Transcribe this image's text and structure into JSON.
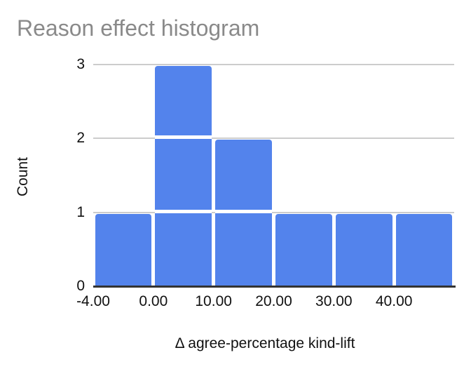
{
  "title": "Reason effect histogram",
  "colors": {
    "bar": "#5383ec",
    "gridline": "#cccccc",
    "axis_line": "#333333",
    "title_text": "#8a8a8a",
    "label_text": "#111111",
    "background": "#ffffff"
  },
  "chart_data": {
    "type": "bar",
    "subtype": "histogram",
    "title": "Reason effect histogram",
    "xlabel": "Δ agree-percentage kind-lift",
    "ylabel": "Count",
    "bins": [
      {
        "range": [
          -4,
          0
        ],
        "count": 1
      },
      {
        "range": [
          0,
          10
        ],
        "count": 3
      },
      {
        "range": [
          10,
          20
        ],
        "count": 2
      },
      {
        "range": [
          20,
          30
        ],
        "count": 1
      },
      {
        "range": [
          30,
          40
        ],
        "count": 1
      },
      {
        "range": [
          40,
          50
        ],
        "count": 1
      }
    ],
    "x_tick_labels": [
      "-4.00",
      "0.00",
      "10.00",
      "20.00",
      "30.00",
      "40.00"
    ],
    "y_ticks": [
      0,
      1,
      2,
      3
    ],
    "ylim": [
      0,
      3
    ],
    "grid": true,
    "legend": "none",
    "item_dividers": true
  }
}
